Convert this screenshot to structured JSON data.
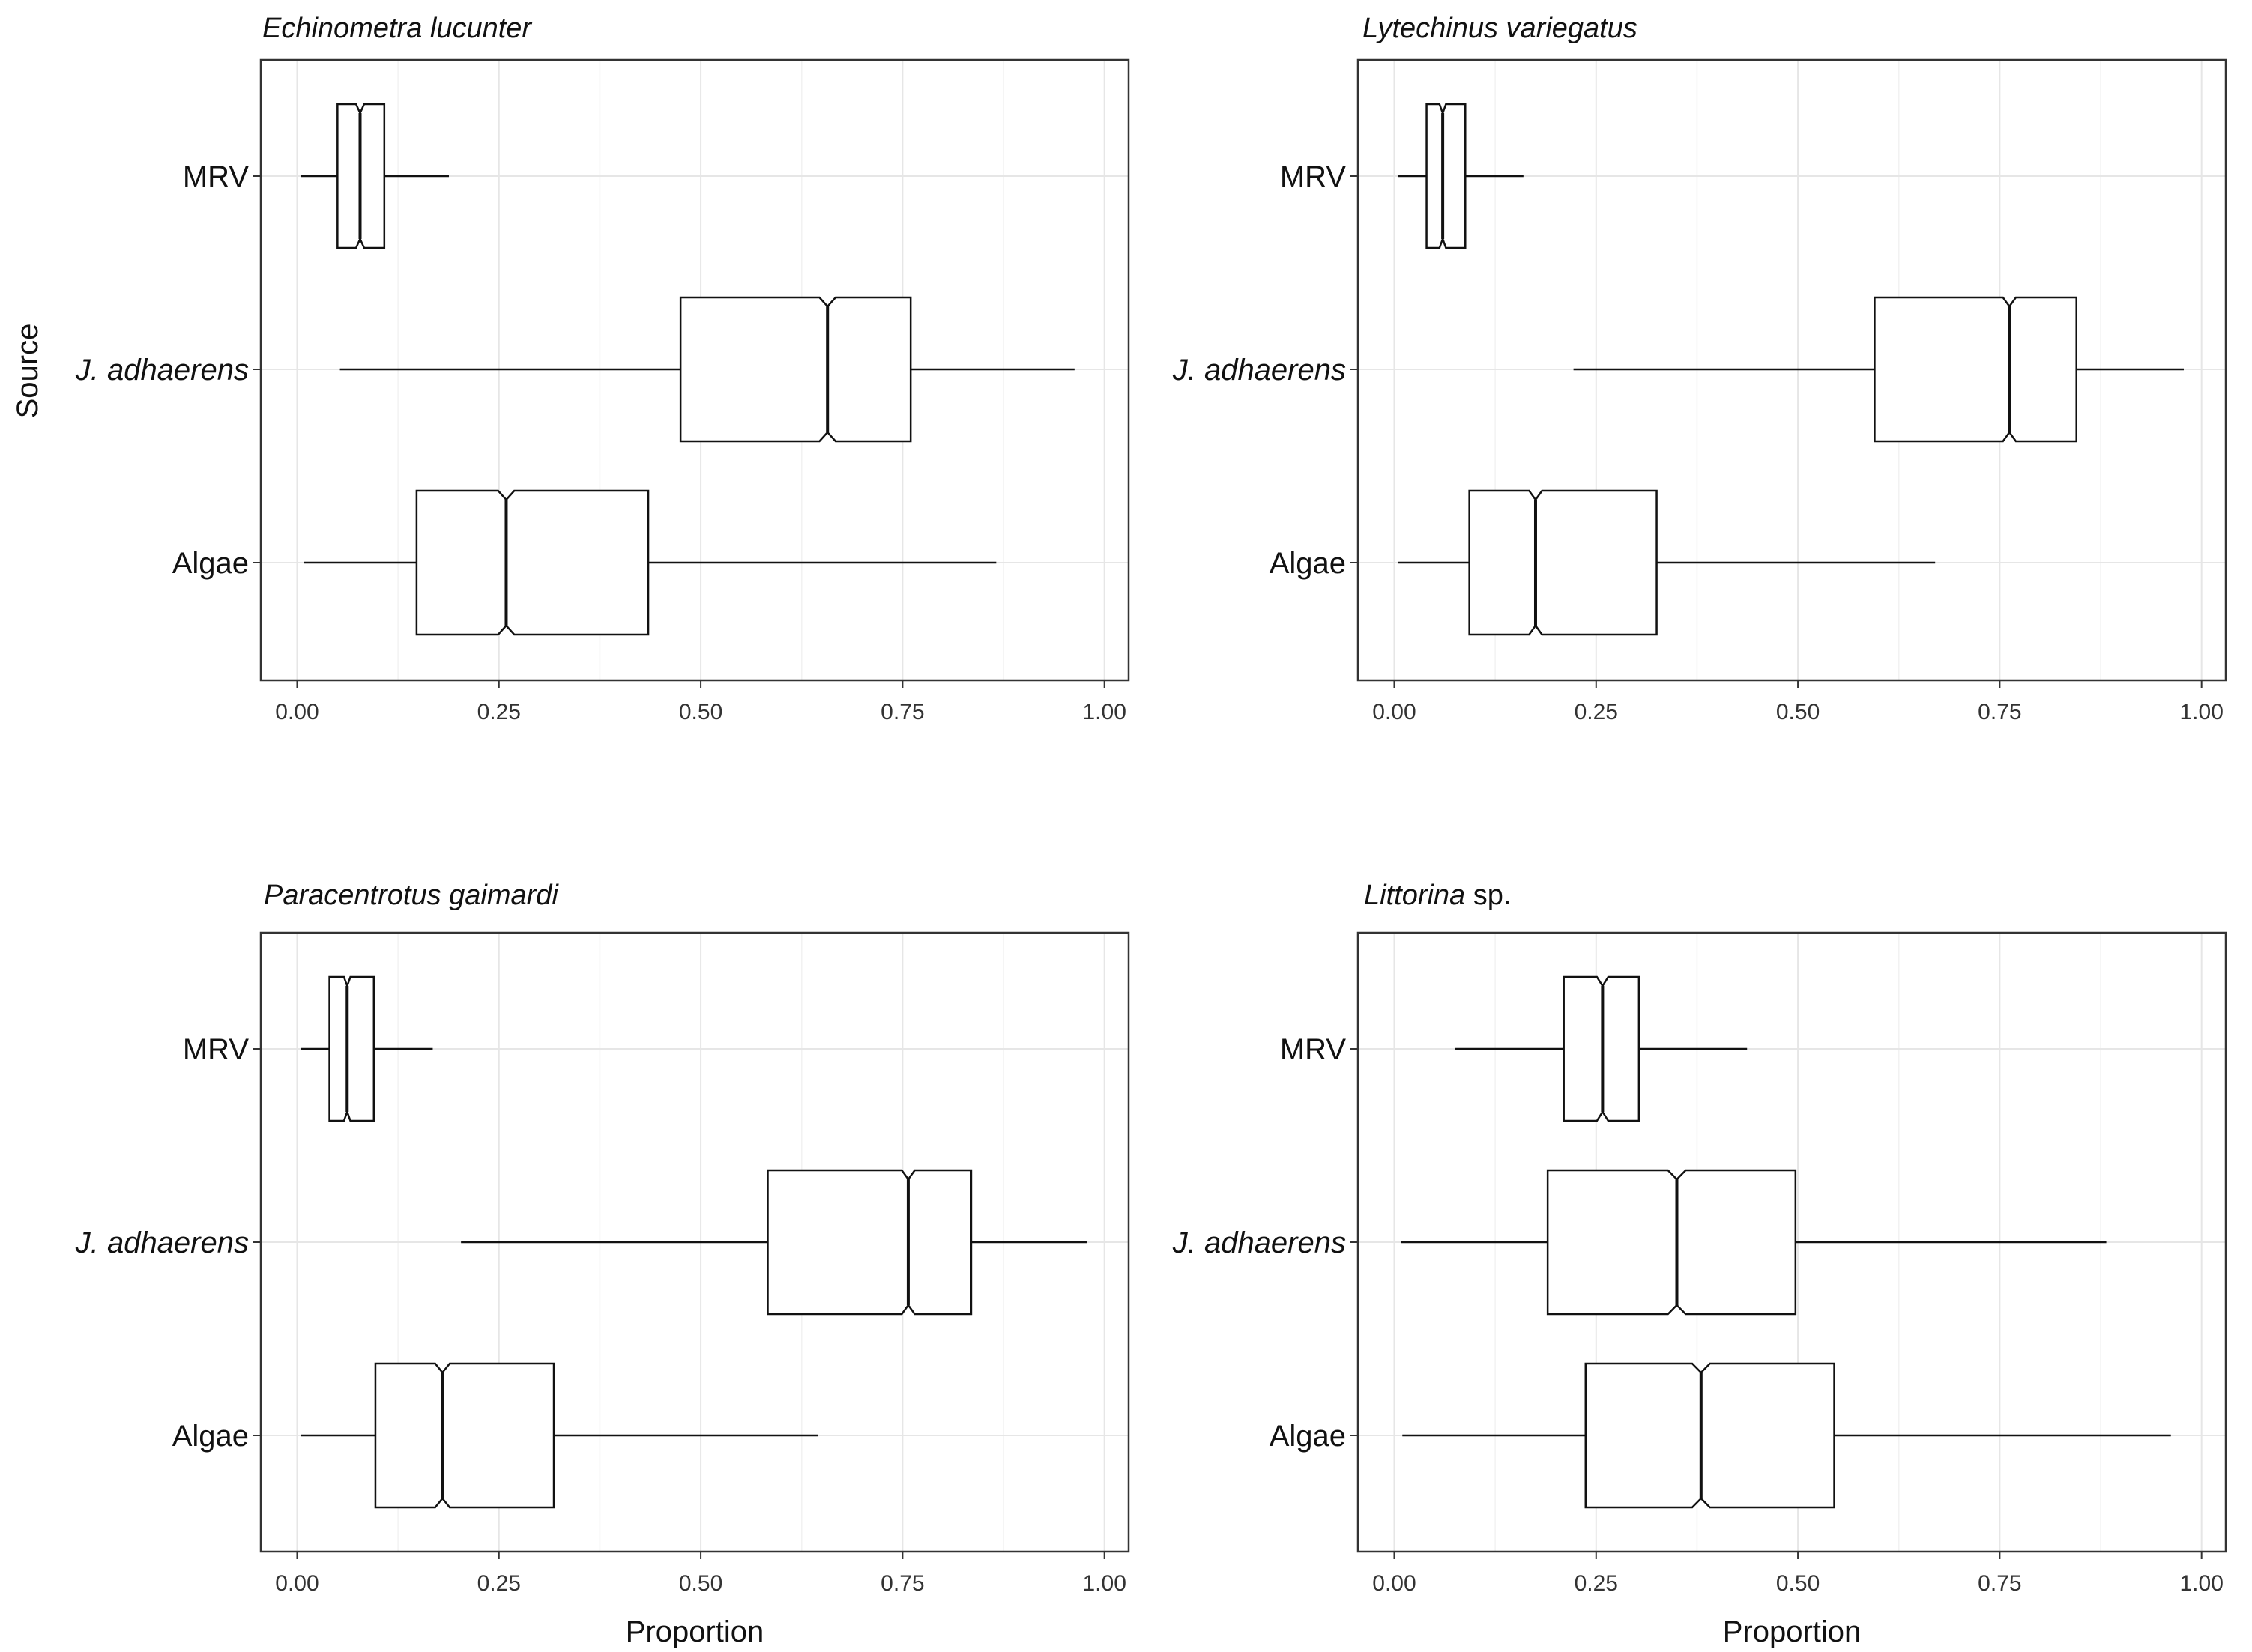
{
  "chart_data": [
    {
      "type": "boxplot",
      "title": "Echinometra lucunter",
      "title_parts": [
        {
          "text": "Echinometra lucunter",
          "italic": true
        }
      ],
      "xlabel": "",
      "ylabel": "Source",
      "xlim": [
        -0.045,
        1.03
      ],
      "xticks": [
        "0.00",
        "0.25",
        "0.50",
        "0.75",
        "1.00"
      ],
      "notched": true,
      "categories": [
        "MRV",
        "J. adhaerens",
        "Algae"
      ],
      "category_parts": [
        [
          {
            "text": "MRV",
            "italic": false
          }
        ],
        [
          {
            "text": "J. adhaerens",
            "italic": true
          }
        ],
        [
          {
            "text": "Algae",
            "italic": false
          }
        ]
      ],
      "boxes": [
        {
          "whisker_low": 0.005,
          "q1": 0.05,
          "median": 0.078,
          "q3": 0.108,
          "whisker_high": 0.188,
          "notch_low": 0.073,
          "notch_high": 0.083
        },
        {
          "whisker_low": 0.053,
          "q1": 0.475,
          "median": 0.657,
          "q3": 0.76,
          "whisker_high": 0.963,
          "notch_low": 0.647,
          "notch_high": 0.667
        },
        {
          "whisker_low": 0.008,
          "q1": 0.148,
          "median": 0.259,
          "q3": 0.435,
          "whisker_high": 0.866,
          "notch_low": 0.249,
          "notch_high": 0.269
        }
      ]
    },
    {
      "type": "boxplot",
      "title": "Lytechinus variegatus",
      "title_parts": [
        {
          "text": "Lytechinus variegatus",
          "italic": true
        }
      ],
      "xlabel": "",
      "ylabel": "",
      "xlim": [
        -0.045,
        1.03
      ],
      "xticks": [
        "0.00",
        "0.25",
        "0.50",
        "0.75",
        "1.00"
      ],
      "notched": true,
      "categories": [
        "MRV",
        "J. adhaerens",
        "Algae"
      ],
      "category_parts": [
        [
          {
            "text": "MRV",
            "italic": false
          }
        ],
        [
          {
            "text": "J. adhaerens",
            "italic": true
          }
        ],
        [
          {
            "text": "Algae",
            "italic": false
          }
        ]
      ],
      "boxes": [
        {
          "whisker_low": 0.005,
          "q1": 0.04,
          "median": 0.06,
          "q3": 0.088,
          "whisker_high": 0.16,
          "notch_low": 0.056,
          "notch_high": 0.064
        },
        {
          "whisker_low": 0.222,
          "q1": 0.595,
          "median": 0.762,
          "q3": 0.845,
          "whisker_high": 0.978,
          "notch_low": 0.754,
          "notch_high": 0.77
        },
        {
          "whisker_low": 0.005,
          "q1": 0.093,
          "median": 0.175,
          "q3": 0.325,
          "whisker_high": 0.67,
          "notch_low": 0.167,
          "notch_high": 0.183
        }
      ]
    },
    {
      "type": "boxplot",
      "title": "Paracentrotus gaimardi",
      "title_parts": [
        {
          "text": "Paracentrotus gaimardi",
          "italic": true
        }
      ],
      "xlabel": "Proportion",
      "ylabel": "",
      "xlim": [
        -0.045,
        1.03
      ],
      "xticks": [
        "0.00",
        "0.25",
        "0.50",
        "0.75",
        "1.00"
      ],
      "notched": true,
      "categories": [
        "MRV",
        "J. adhaerens",
        "Algae"
      ],
      "category_parts": [
        [
          {
            "text": "MRV",
            "italic": false
          }
        ],
        [
          {
            "text": "J. adhaerens",
            "italic": true
          }
        ],
        [
          {
            "text": "Algae",
            "italic": false
          }
        ]
      ],
      "boxes": [
        {
          "whisker_low": 0.005,
          "q1": 0.04,
          "median": 0.062,
          "q3": 0.095,
          "whisker_high": 0.168,
          "notch_low": 0.058,
          "notch_high": 0.066
        },
        {
          "whisker_low": 0.203,
          "q1": 0.583,
          "median": 0.757,
          "q3": 0.835,
          "whisker_high": 0.978,
          "notch_low": 0.749,
          "notch_high": 0.765
        },
        {
          "whisker_low": 0.005,
          "q1": 0.097,
          "median": 0.18,
          "q3": 0.318,
          "whisker_high": 0.645,
          "notch_low": 0.171,
          "notch_high": 0.189
        }
      ]
    },
    {
      "type": "boxplot",
      "title": "Littorina sp.",
      "title_parts": [
        {
          "text": "Littorina",
          "italic": true
        },
        {
          "text": " sp.",
          "italic": false
        }
      ],
      "xlabel": "Proportion",
      "ylabel": "",
      "xlim": [
        -0.045,
        1.03
      ],
      "xticks": [
        "0.00",
        "0.25",
        "0.50",
        "0.75",
        "1.00"
      ],
      "notched": true,
      "categories": [
        "MRV",
        "J. adhaerens",
        "Algae"
      ],
      "category_parts": [
        [
          {
            "text": "MRV",
            "italic": false
          }
        ],
        [
          {
            "text": "J. adhaerens",
            "italic": true
          }
        ],
        [
          {
            "text": "Algae",
            "italic": false
          }
        ]
      ],
      "boxes": [
        {
          "whisker_low": 0.075,
          "q1": 0.21,
          "median": 0.258,
          "q3": 0.303,
          "whisker_high": 0.437,
          "notch_low": 0.251,
          "notch_high": 0.265
        },
        {
          "whisker_low": 0.008,
          "q1": 0.19,
          "median": 0.35,
          "q3": 0.497,
          "whisker_high": 0.882,
          "notch_low": 0.339,
          "notch_high": 0.361
        },
        {
          "whisker_low": 0.01,
          "q1": 0.237,
          "median": 0.38,
          "q3": 0.545,
          "whisker_high": 0.962,
          "notch_low": 0.369,
          "notch_high": 0.391
        }
      ]
    }
  ]
}
